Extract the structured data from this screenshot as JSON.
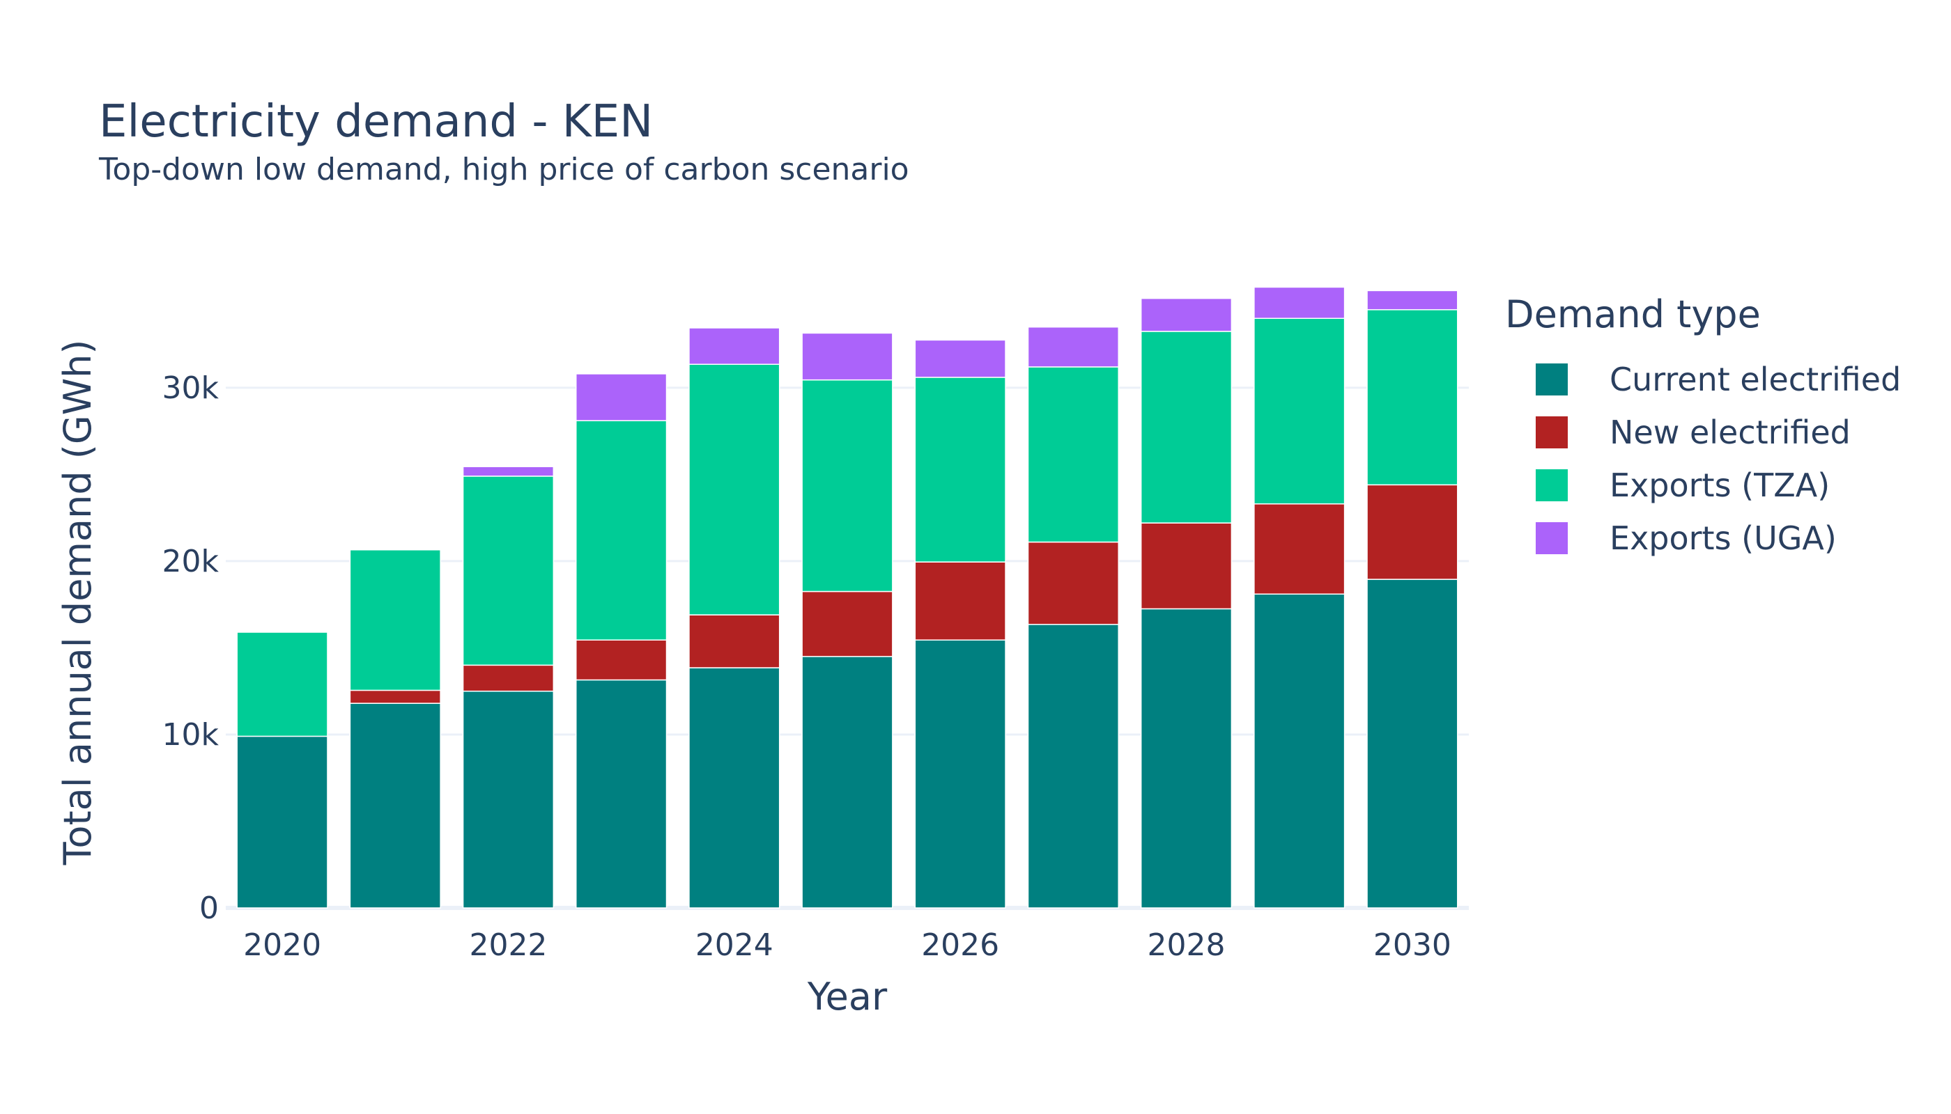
{
  "chart_data": {
    "type": "bar",
    "title": "Electricity demand - KEN",
    "subtitle": "Top-down low demand, high price of carbon scenario",
    "xlabel": "Year",
    "ylabel": "Total annual demand (GWh)",
    "stacked": true,
    "categories": [
      2020,
      2021,
      2022,
      2023,
      2024,
      2025,
      2026,
      2027,
      2028,
      2029,
      2030
    ],
    "x_ticks": [
      "2020",
      "2022",
      "2024",
      "2026",
      "2028",
      "2030"
    ],
    "y_ticks": [
      {
        "value": 0,
        "label": "0"
      },
      {
        "value": 10000,
        "label": "10k"
      },
      {
        "value": 20000,
        "label": "20k"
      },
      {
        "value": 30000,
        "label": "30k"
      }
    ],
    "ylim": [
      0,
      36500
    ],
    "grid": true,
    "legend_title": "Demand type",
    "legend_position": "right",
    "series": [
      {
        "name": "Current electrified",
        "color": "#008080",
        "values": [
          9900,
          11800,
          12500,
          13150,
          13850,
          14500,
          15450,
          16350,
          17250,
          18100,
          18950
        ]
      },
      {
        "name": "New electrified",
        "color": "#b22222",
        "values": [
          0,
          750,
          1500,
          2300,
          3050,
          3750,
          4500,
          4750,
          4950,
          5200,
          5450
        ]
      },
      {
        "name": "Exports (TZA)",
        "color": "#00cc96",
        "values": [
          6000,
          8100,
          10900,
          12650,
          14450,
          12200,
          10650,
          10100,
          11050,
          10700,
          10100
        ]
      },
      {
        "name": "Exports (UGA)",
        "color": "#ab63fa",
        "values": [
          0,
          0,
          550,
          2700,
          2100,
          2700,
          2150,
          2300,
          1900,
          1800,
          1100
        ]
      }
    ]
  }
}
